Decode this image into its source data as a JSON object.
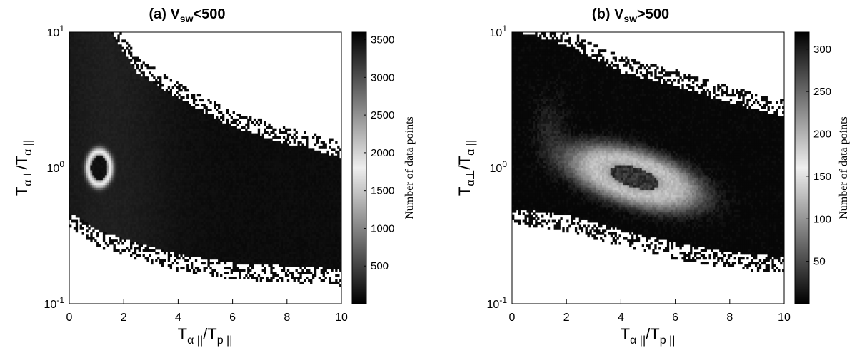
{
  "chart_data": [
    {
      "type": "heatmap",
      "title_main": "(a) V",
      "title_sub": "sw",
      "title_tail": "<500",
      "xlabel": {
        "main1": "T",
        "sub1": "α ||",
        "slash": "/T",
        "sub2": "p ||"
      },
      "ylabel": {
        "main1": "T",
        "sub1": "α⊥",
        "slash": "/T",
        "sub2": "α ||"
      },
      "xlim": [
        0,
        10
      ],
      "ylim": [
        0.1,
        10
      ],
      "yscale": "log",
      "x_ticks": [
        "0",
        "2",
        "4",
        "6",
        "8",
        "10"
      ],
      "y_ticks": [
        {
          "base": "10",
          "exp": "-1"
        },
        {
          "base": "10",
          "exp": "0"
        },
        {
          "base": "10",
          "exp": "1"
        }
      ],
      "colorbar": {
        "label": "Number of data points",
        "range": [
          0,
          3600
        ],
        "ticks": [
          "500",
          "1000",
          "1500",
          "2000",
          "2500",
          "3000",
          "3500"
        ],
        "colormap": "gray"
      },
      "features": {
        "peak": {
          "x": 1.1,
          "y": 1.0,
          "value": 3600
        },
        "upper_edge": [
          [
            0.2,
            10
          ],
          [
            1.5,
            10
          ],
          [
            2.5,
            5.0
          ],
          [
            4,
            3.2
          ],
          [
            6,
            2.0
          ],
          [
            8,
            1.5
          ],
          [
            10,
            1.2
          ]
        ],
        "lower_edge": [
          [
            0.2,
            0.45
          ],
          [
            1,
            0.35
          ],
          [
            2,
            0.3
          ],
          [
            4,
            0.23
          ],
          [
            6,
            0.2
          ],
          [
            8,
            0.19
          ],
          [
            10,
            0.18
          ]
        ]
      }
    },
    {
      "type": "heatmap",
      "title_main": "(b) V",
      "title_sub": "sw",
      "title_tail": ">500",
      "xlabel": {
        "main1": "T",
        "sub1": "α ||",
        "slash": "/T",
        "sub2": "p ||"
      },
      "ylabel": {
        "main1": "T",
        "sub1": "α⊥",
        "slash": "/T",
        "sub2": "α ||"
      },
      "xlim": [
        0,
        10
      ],
      "ylim": [
        0.1,
        10
      ],
      "yscale": "log",
      "x_ticks": [
        "0",
        "2",
        "4",
        "6",
        "8",
        "10"
      ],
      "y_ticks": [
        {
          "base": "10",
          "exp": "-1"
        },
        {
          "base": "10",
          "exp": "0"
        },
        {
          "base": "10",
          "exp": "1"
        }
      ],
      "colorbar": {
        "label": "Number of data points",
        "range": [
          0,
          320
        ],
        "ticks": [
          "50",
          "100",
          "150",
          "200",
          "250",
          "300"
        ],
        "colormap": "gray"
      },
      "features": {
        "peak": {
          "x": 4.5,
          "y": 0.8,
          "value": 320
        },
        "upper_edge": [
          [
            0.2,
            10
          ],
          [
            2,
            8
          ],
          [
            4,
            5
          ],
          [
            6,
            4
          ],
          [
            8,
            3
          ],
          [
            10,
            2.4
          ]
        ],
        "lower_edge": [
          [
            0.2,
            0.5
          ],
          [
            2,
            0.45
          ],
          [
            4,
            0.35
          ],
          [
            6,
            0.28
          ],
          [
            8,
            0.24
          ],
          [
            10,
            0.22
          ]
        ]
      }
    }
  ]
}
